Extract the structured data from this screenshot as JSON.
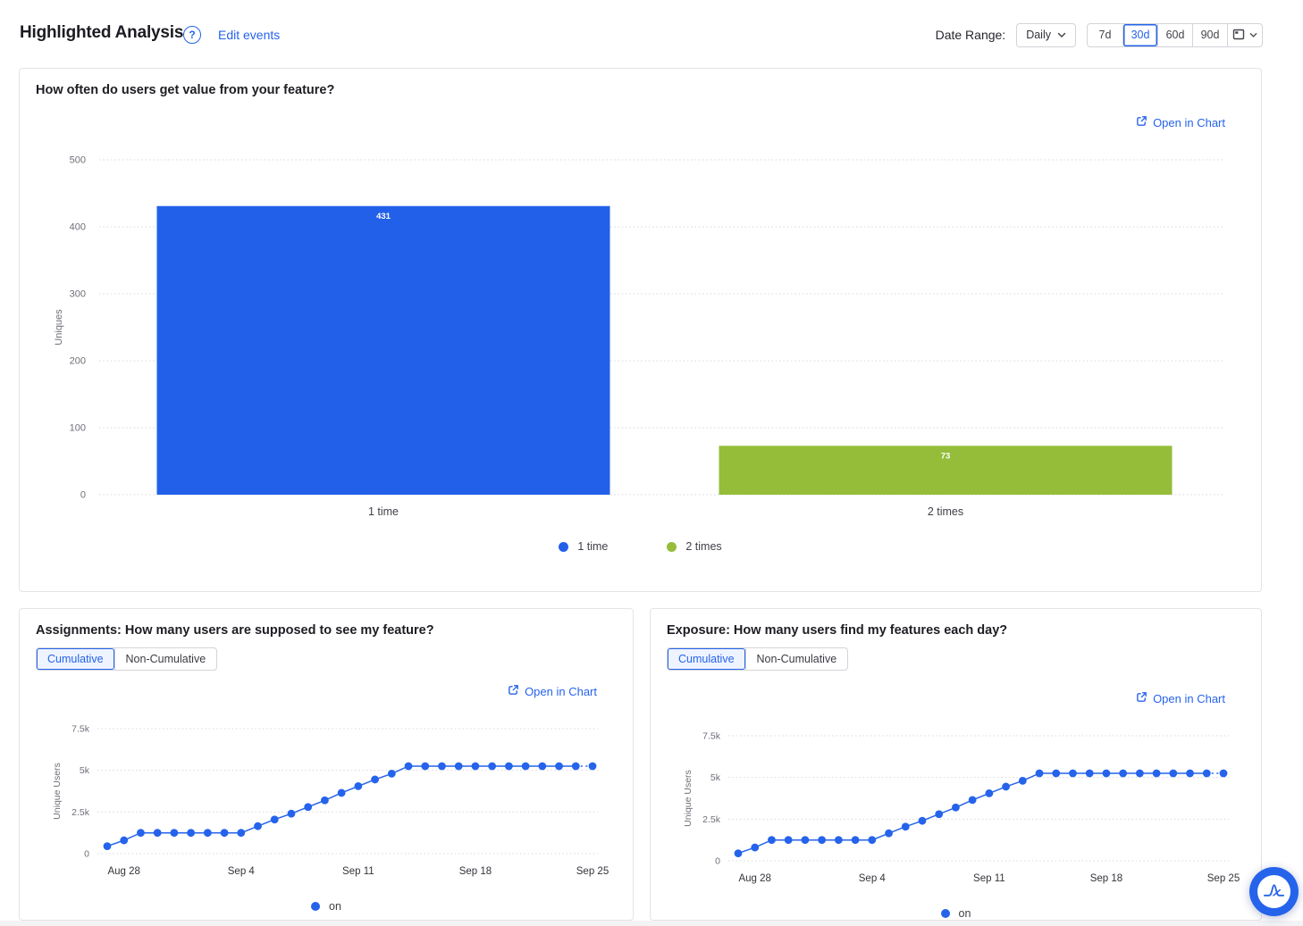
{
  "header": {
    "title": "Highlighted Analysis",
    "edit_events_label": "Edit events",
    "date_range_label": "Date Range:",
    "granularity": "Daily",
    "range_options": [
      "7d",
      "30d",
      "60d",
      "90d"
    ],
    "selected_range": "30d"
  },
  "colors": {
    "accent": "#2563eb",
    "bar_blue": "#2360ea",
    "bar_green": "#95bd3a",
    "grid": "#d8d8dc",
    "axis_text": "#6e6e78",
    "category_text": "#3f3f47",
    "date_text": "#33333a"
  },
  "cards": {
    "frequency": {
      "title": "How often do users get value from your feature?",
      "open_in_chart": "Open in Chart"
    },
    "assignments": {
      "title": "Assignments: How many users are supposed to see my feature?",
      "toggle": [
        "Cumulative",
        "Non-Cumulative"
      ],
      "selected_toggle": "Cumulative",
      "open_in_chart": "Open in Chart"
    },
    "exposure": {
      "title": "Exposure: How many users find my features each day?",
      "toggle": [
        "Cumulative",
        "Non-Cumulative"
      ],
      "selected_toggle": "Cumulative",
      "open_in_chart": "Open in Chart"
    }
  },
  "chart_data": [
    {
      "type": "bar",
      "title": "How often do users get value from your feature?",
      "ylabel": "Uniques",
      "categories": [
        "1 time",
        "2 times"
      ],
      "values": [
        431,
        73
      ],
      "colors": [
        "#2360ea",
        "#95bd3a"
      ],
      "yticks": [
        0,
        100,
        200,
        300,
        400,
        500
      ],
      "ylim": [
        0,
        500
      ],
      "legend": [
        "1 time",
        "2 times"
      ],
      "grid": "horizontal-dotted",
      "legend_position": "bottom-center"
    },
    {
      "type": "line",
      "title": "Assignments: How many users are supposed to see my feature?",
      "ylabel": "Unique Users",
      "x_tick_labels": [
        "Aug 28",
        "Sep 4",
        "Sep 11",
        "Sep 18",
        "Sep 25"
      ],
      "x_tick_indices": [
        1,
        8,
        15,
        22,
        29
      ],
      "ytick_labels": [
        "0",
        "2.5k",
        "5k",
        "7.5k"
      ],
      "ytick_values": [
        0,
        2500,
        5000,
        7500
      ],
      "ylim": [
        0,
        7500
      ],
      "legend": [
        "on"
      ],
      "last_segment_dashed": true,
      "series": [
        {
          "name": "on",
          "color": "#2563eb",
          "values": [
            450,
            800,
            1250,
            1250,
            1250,
            1250,
            1250,
            1250,
            1250,
            1650,
            2050,
            2400,
            2800,
            3200,
            3650,
            4050,
            4450,
            4800,
            5250,
            5250,
            5250,
            5250,
            5250,
            5250,
            5250,
            5250,
            5250,
            5250,
            5250,
            5250
          ]
        }
      ]
    },
    {
      "type": "line",
      "title": "Exposure: How many users find my features each day?",
      "ylabel": "Unique Users",
      "x_tick_labels": [
        "Aug 28",
        "Sep 4",
        "Sep 11",
        "Sep 18",
        "Sep 25"
      ],
      "x_tick_indices": [
        1,
        8,
        15,
        22,
        29
      ],
      "ytick_labels": [
        "0",
        "2.5k",
        "5k",
        "7.5k"
      ],
      "ytick_values": [
        0,
        2500,
        5000,
        7500
      ],
      "ylim": [
        0,
        7500
      ],
      "legend": [
        "on"
      ],
      "last_segment_dashed": true,
      "series": [
        {
          "name": "on",
          "color": "#2563eb",
          "values": [
            450,
            800,
            1250,
            1250,
            1250,
            1250,
            1250,
            1250,
            1250,
            1650,
            2050,
            2400,
            2800,
            3200,
            3650,
            4050,
            4450,
            4800,
            5250,
            5250,
            5250,
            5250,
            5250,
            5250,
            5250,
            5250,
            5250,
            5250,
            5250,
            5250
          ]
        }
      ]
    }
  ]
}
